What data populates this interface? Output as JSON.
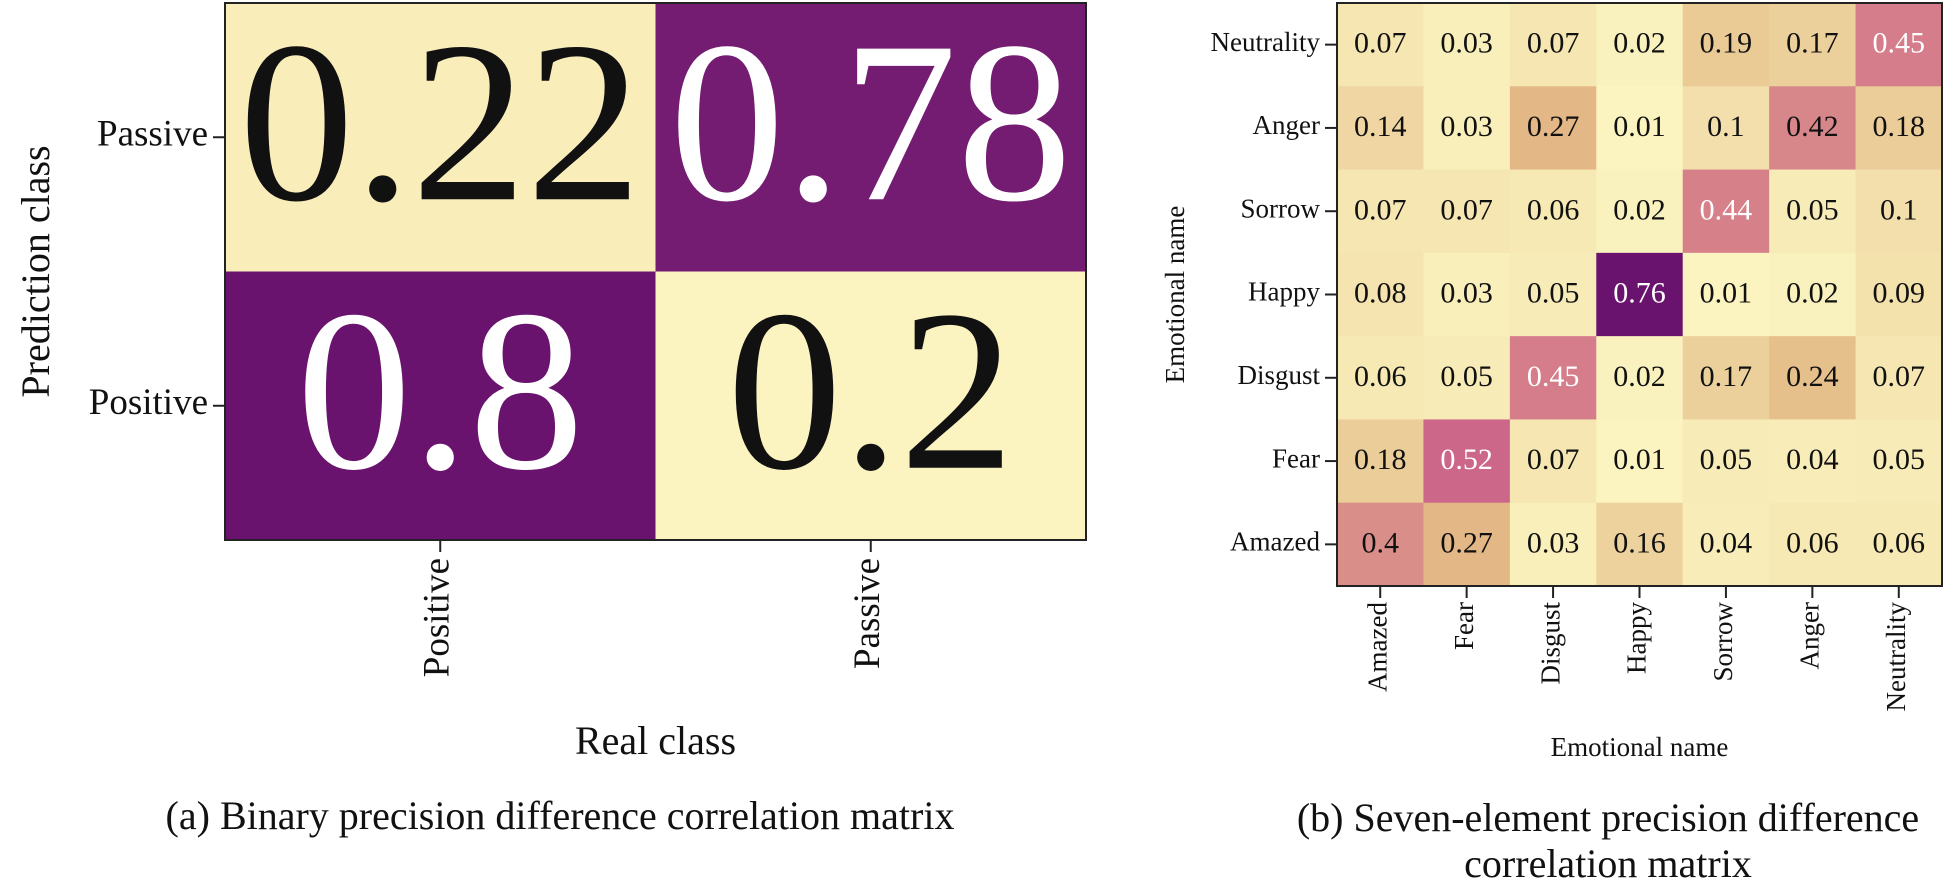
{
  "chart_data": [
    {
      "type": "heatmap",
      "title": [
        "(a) Binary precision difference correlation matrix"
      ],
      "xlabel": "Real class",
      "ylabel": "Prediction class",
      "x": [
        "Positive",
        "Passive"
      ],
      "y": [
        "Passive",
        "Positive"
      ],
      "values": [
        [
          0.22,
          0.78
        ],
        [
          0.8,
          0.2
        ]
      ],
      "colormap": [
        "#fbf4c0",
        "#e4bb86",
        "#d06a8b",
        "#69136f"
      ]
    },
    {
      "type": "heatmap",
      "title": [
        "(b) Seven-element precision difference",
        "correlation matrix"
      ],
      "xlabel": "Emotional name",
      "ylabel": "Emotional name",
      "x": [
        "Amazed",
        "Fear",
        "Disgust",
        "Happy",
        "Sorrow",
        "Anger",
        "Neutrality"
      ],
      "y": [
        "Neutrality",
        "Anger",
        "Sorrow",
        "Happy",
        "Disgust",
        "Fear",
        "Amazed"
      ],
      "values": [
        [
          0.07,
          0.03,
          0.07,
          0.02,
          0.19,
          0.17,
          0.45
        ],
        [
          0.14,
          0.03,
          0.27,
          0.01,
          0.1,
          0.42,
          0.18
        ],
        [
          0.07,
          0.07,
          0.06,
          0.02,
          0.44,
          0.05,
          0.1
        ],
        [
          0.08,
          0.03,
          0.05,
          0.76,
          0.01,
          0.02,
          0.09
        ],
        [
          0.06,
          0.05,
          0.45,
          0.02,
          0.17,
          0.24,
          0.07
        ],
        [
          0.18,
          0.52,
          0.07,
          0.01,
          0.05,
          0.04,
          0.05
        ],
        [
          0.4,
          0.27,
          0.03,
          0.16,
          0.04,
          0.06,
          0.06
        ]
      ],
      "colormap": [
        "#fbf4c0",
        "#e4bb86",
        "#d06a8b",
        "#69136f"
      ]
    }
  ]
}
